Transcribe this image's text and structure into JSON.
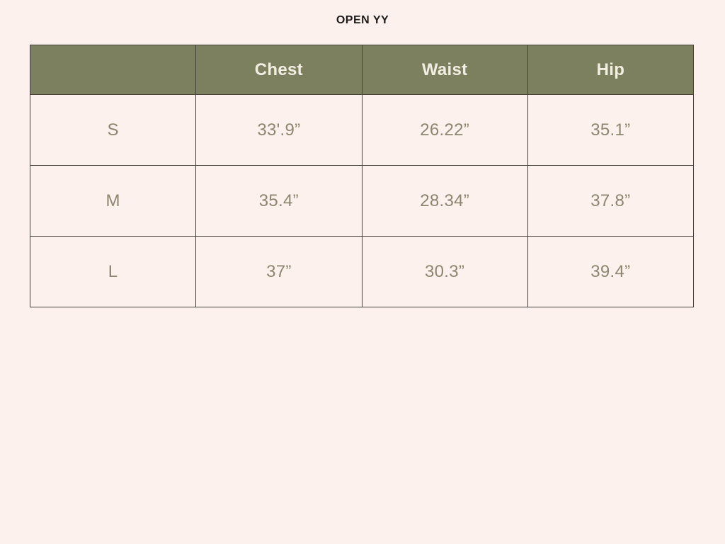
{
  "page": {
    "title": "OPEN YY",
    "background_color": "#fdf1ee"
  },
  "chart_data": {
    "type": "table",
    "title": "OPEN YY",
    "columns": [
      "",
      "Chest",
      "Waist",
      "Hip"
    ],
    "rows": [
      [
        "S",
        "33'.9”",
        "26.22”",
        "35.1”"
      ],
      [
        "M",
        "35.4”",
        "28.34”",
        "37.8”"
      ],
      [
        "L",
        "37”",
        "30.3”",
        "39.4”"
      ]
    ],
    "colors": {
      "header_background": "#7d805f",
      "header_text": "#f3eee2",
      "body_text": "#8c8670",
      "border": "#45403a",
      "page_background": "#fdf1ee"
    },
    "legend_position": "none",
    "grid": true
  }
}
